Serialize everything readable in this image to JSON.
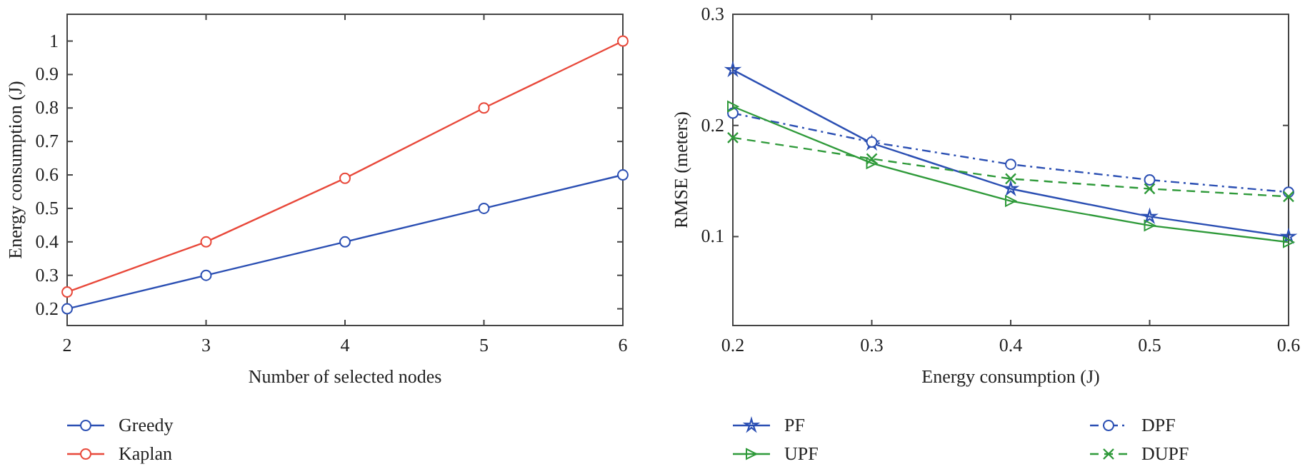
{
  "chart_data": [
    {
      "type": "line",
      "xlabel": "Number of selected nodes",
      "ylabel": "Energy consumption (J)",
      "x": [
        2,
        3,
        4,
        5,
        6
      ],
      "xlim": [
        2,
        6
      ],
      "xticks": [
        2,
        3,
        4,
        5,
        6
      ],
      "ylim": [
        0.15,
        1.08
      ],
      "yticks": [
        0.2,
        0.3,
        0.4,
        0.5,
        0.6,
        0.7,
        0.8,
        0.9,
        1
      ],
      "legend": "bottom",
      "line_style": "solid",
      "series": [
        {
          "name": "Greedy",
          "color": "#2b4fb3",
          "marker": "circle",
          "values": [
            0.2,
            0.3,
            0.4,
            0.5,
            0.6
          ]
        },
        {
          "name": "Kaplan",
          "color": "#e8483a",
          "marker": "circle",
          "values": [
            0.25,
            0.4,
            0.59,
            0.8,
            1.0
          ]
        }
      ]
    },
    {
      "type": "line",
      "xlabel": "Energy consumption (J)",
      "ylabel": "RMSE (meters)",
      "x": [
        0.2,
        0.3,
        0.4,
        0.5,
        0.6
      ],
      "xlim": [
        0.2,
        0.6
      ],
      "xticks": [
        0.2,
        0.3,
        0.4,
        0.5,
        0.6
      ],
      "ylim": [
        0.02,
        0.3
      ],
      "yticks": [
        0.1,
        0.2,
        0.3
      ],
      "legend": "bottom",
      "series": [
        {
          "name": "PF",
          "color": "#2b4fb3",
          "marker": "star",
          "line_style": "solid",
          "values": [
            0.25,
            0.184,
            0.143,
            0.118,
            0.1
          ]
        },
        {
          "name": "DPF",
          "color": "#2b4fb3",
          "marker": "circle",
          "line_style": "dashdot",
          "values": [
            0.211,
            0.185,
            0.165,
            0.151,
            0.14
          ]
        },
        {
          "name": "UPF",
          "color": "#2f9a3a",
          "marker": "triangle",
          "line_style": "solid",
          "values": [
            0.217,
            0.166,
            0.132,
            0.11,
            0.095
          ]
        },
        {
          "name": "DUPF",
          "color": "#2f9a3a",
          "marker": "cross",
          "line_style": "dashed",
          "values": [
            0.189,
            0.17,
            0.152,
            0.143,
            0.136
          ]
        }
      ]
    }
  ]
}
